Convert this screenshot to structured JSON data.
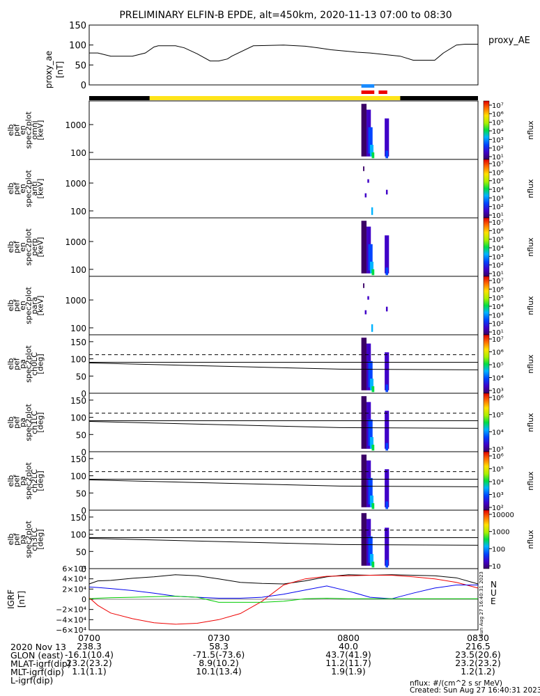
{
  "chart_data": {
    "type": "spectrogram",
    "title": "PRELIMINARY ELFIN-B EPDE, alt=450km, 2020-11-13 07:00 to 08:30",
    "ae_panel": {
      "ylabel": [
        "proxy_ae",
        "[nT]"
      ],
      "yticks": [
        "150",
        "100",
        "50",
        "0"
      ],
      "ylim": [
        0,
        150
      ],
      "legend": "proxy_AE",
      "x_minutes": [
        0,
        2,
        5,
        10,
        13,
        15,
        16,
        20,
        22,
        25,
        28,
        30,
        32,
        33,
        38,
        45,
        50,
        53,
        56,
        62,
        65,
        72,
        75,
        80,
        82,
        85,
        87,
        90
      ],
      "values": [
        80,
        80,
        72,
        72,
        80,
        95,
        98,
        98,
        93,
        78,
        60,
        60,
        65,
        72,
        98,
        100,
        97,
        93,
        88,
        82,
        80,
        72,
        62,
        62,
        80,
        100,
        102,
        102
      ]
    },
    "status_bar": {
      "colors": {
        "black": "#000000",
        "yellow": "#ffe41a",
        "blue": "#1a8cff",
        "red": "#ee0000"
      },
      "segments_minutes": [
        [
          0,
          14,
          "black"
        ],
        [
          14,
          72,
          "yellow"
        ],
        [
          72,
          90,
          "black"
        ]
      ],
      "marks_minutes": [
        [
          63,
          66,
          "blue"
        ],
        [
          63,
          66,
          "red"
        ],
        [
          67,
          69,
          "red"
        ]
      ]
    },
    "spec_panels": [
      {
        "ylabel": [
          "elb",
          "pef",
          "en",
          "spec2plot",
          "omni",
          "[keV]"
        ],
        "yticks": [
          "1000",
          "100"
        ],
        "kind": "energy",
        "cbar_ticks": [
          "10⁷",
          "10⁶",
          "10⁵",
          "10⁴",
          "10³",
          "10²",
          "10¹"
        ],
        "cbar_label": "nflux"
      },
      {
        "ylabel": [
          "elb",
          "pef",
          "en",
          "spec2plot",
          "anti",
          "[keV]"
        ],
        "yticks": [
          "1000",
          "100"
        ],
        "kind": "energy",
        "cbar_ticks": [
          "10⁷",
          "10⁶",
          "10⁵",
          "10⁴",
          "10³",
          "10²",
          "10¹"
        ],
        "cbar_label": "nflux"
      },
      {
        "ylabel": [
          "elb",
          "pef",
          "en",
          "spec2plot",
          "perp",
          "[keV]"
        ],
        "yticks": [
          "1000",
          "100"
        ],
        "kind": "energy",
        "cbar_ticks": [
          "10⁷",
          "10⁶",
          "10⁵",
          "10⁴",
          "10³",
          "10²",
          "10¹"
        ],
        "cbar_label": "nflux"
      },
      {
        "ylabel": [
          "elb",
          "pef",
          "en",
          "spec2plot",
          "para",
          "[keV]"
        ],
        "yticks": [
          "1000",
          "100"
        ],
        "kind": "energy",
        "cbar_ticks": [
          "10⁷",
          "10⁶",
          "10⁵",
          "10⁴",
          "10³",
          "10²",
          "10¹"
        ],
        "cbar_label": "nflux"
      },
      {
        "ylabel": [
          "elb",
          "pef",
          "pa",
          "spec2plot",
          "ch0LC",
          "[deg]"
        ],
        "yticks": [
          "150",
          "100",
          "50",
          "0"
        ],
        "kind": "pitch",
        "cbar_ticks": [
          "10⁷",
          "10⁶",
          "10⁵",
          "10⁴",
          "10³"
        ],
        "cbar_label": "nflux"
      },
      {
        "ylabel": [
          "elb",
          "pef",
          "pa",
          "spec2plot",
          "ch1LC",
          "[deg]"
        ],
        "yticks": [
          "150",
          "100",
          "50",
          "0"
        ],
        "kind": "pitch",
        "cbar_ticks": [
          "10⁶",
          "10⁵",
          "10⁴",
          "10³"
        ],
        "cbar_label": "nflux"
      },
      {
        "ylabel": [
          "elb",
          "pef",
          "pa",
          "spec2plot",
          "ch2LC",
          "[deg]"
        ],
        "yticks": [
          "150",
          "100",
          "50",
          "0"
        ],
        "kind": "pitch",
        "cbar_ticks": [
          "10⁶",
          "10⁵",
          "10⁴",
          "10³",
          "10²"
        ],
        "cbar_label": "nflux"
      },
      {
        "ylabel": [
          "elb",
          "pef",
          "pa",
          "spec2plot",
          "ch3LC",
          "[deg]"
        ],
        "yticks": [
          "150",
          "100",
          "50",
          "0"
        ],
        "kind": "pitch",
        "cbar_ticks": [
          "10000",
          "1000",
          "100",
          "10"
        ],
        "cbar_label": "nflux"
      }
    ],
    "igrf_panel": {
      "ylabel": [
        "IGRF",
        "[nT]"
      ],
      "yticks": [
        "6×10⁴",
        "4×10⁴",
        "2×10⁴",
        "0",
        "−2×10⁴",
        "−4×10⁴",
        "−6×10⁴"
      ],
      "ylim": [
        -60000,
        60000
      ],
      "legend": [
        "N",
        "U",
        "E"
      ],
      "colors": {
        "N": "#0000ee",
        "U": "#ee0000",
        "E": "#00cc00",
        "total": "#000000"
      },
      "x_minutes": [
        0,
        2,
        5,
        10,
        15,
        20,
        25,
        30,
        35,
        40,
        45,
        50,
        55,
        60,
        65,
        70,
        75,
        80,
        85,
        90
      ],
      "total": [
        30000,
        36000,
        37000,
        41000,
        44000,
        48000,
        46000,
        40000,
        33000,
        31000,
        30000,
        36000,
        44000,
        48000,
        47000,
        48000,
        47000,
        46000,
        42000,
        30000
      ],
      "U": [
        3000,
        -12000,
        -27000,
        -38000,
        -46000,
        -49000,
        -47000,
        -40000,
        -28000,
        -4000,
        28000,
        40000,
        45000,
        46000,
        47000,
        47000,
        44000,
        40000,
        33000,
        22000
      ],
      "N": [
        24000,
        23000,
        21000,
        17000,
        12000,
        6000,
        4000,
        2000,
        2000,
        4000,
        10000,
        18000,
        26000,
        16000,
        4000,
        1000,
        12000,
        22000,
        28000,
        28000
      ],
      "E": [
        1000,
        2000,
        3000,
        4000,
        5000,
        6000,
        4000,
        -6000,
        -6000,
        -6000,
        -4000,
        1000,
        2000,
        1000,
        1000,
        1000,
        1000,
        1000,
        1000,
        1000
      ]
    },
    "footer": {
      "rows": [
        {
          "label": "2020 Nov 13",
          "values": [
            "0700",
            "0730",
            "0800",
            "0830"
          ]
        },
        {
          "label": "GLON (east)",
          "values": [
            "238.3",
            "58.3",
            "40.0",
            "216.5"
          ]
        },
        {
          "label": "MLAT-igrf(dip)",
          "values": [
            "-16.1(10.4)",
            "-71.5(-73.6)",
            "43.7(41.9)",
            "23.5(20.6)"
          ]
        },
        {
          "label": "MLT-igrf(dip)",
          "values": [
            "23.2(23.2)",
            "8.9(10.2)",
            "11.2(11.7)",
            "23.2(23.2)"
          ]
        },
        {
          "label": "L-igrf(dip)",
          "values": [
            "1.1(1.1)",
            "10.1(13.4)",
            "1.9(1.9)",
            "1.2(1.2)"
          ]
        }
      ],
      "unit_note": "nflux: #/(cm^2 s sr MeV)",
      "created": "Created: Sun Aug 27 16:40:31 2023",
      "side_stamp": "Sun Aug 27 16:40:31 2023"
    }
  }
}
